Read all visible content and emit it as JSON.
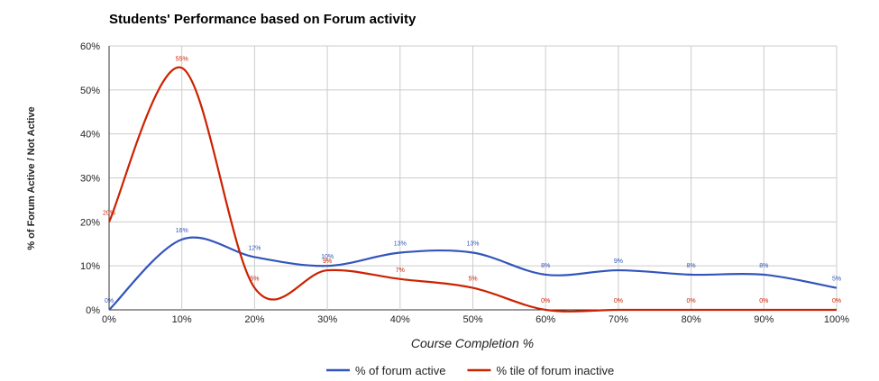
{
  "chart_data": {
    "type": "line",
    "title": "Students' Performance based on Forum activity",
    "xlabel": "Course Completion %",
    "ylabel": "% of Forum Active / Not Active",
    "x": [
      0,
      10,
      20,
      30,
      40,
      50,
      60,
      70,
      80,
      90,
      100
    ],
    "x_tick_labels": [
      "0%",
      "10%",
      "20%",
      "30%",
      "40%",
      "50%",
      "60%",
      "70%",
      "80%",
      "90%",
      "100%"
    ],
    "ylim": [
      0,
      60
    ],
    "y_tick_labels": [
      "0%",
      "10%",
      "20%",
      "30%",
      "40%",
      "50%",
      "60%"
    ],
    "grid": true,
    "legend_position": "bottom",
    "series": [
      {
        "name": "% of forum active",
        "color": "#3355bb",
        "values": [
          0,
          16,
          12,
          10,
          13,
          13,
          8,
          9,
          8,
          8,
          5
        ],
        "labels": [
          "0%",
          "16%",
          "12%",
          "10%",
          "13%",
          "13%",
          "8%",
          "9%",
          "8%",
          "8%",
          "5%"
        ]
      },
      {
        "name": "% tile of forum inactive",
        "color": "#cc2200",
        "values": [
          20,
          55,
          5,
          9,
          7,
          5,
          0,
          0,
          0,
          0,
          0
        ],
        "labels": [
          "20%",
          "55%",
          "5%",
          "9%",
          "7%",
          "5%",
          "0%",
          "0%",
          "0%",
          "0%",
          "0%"
        ]
      }
    ]
  }
}
